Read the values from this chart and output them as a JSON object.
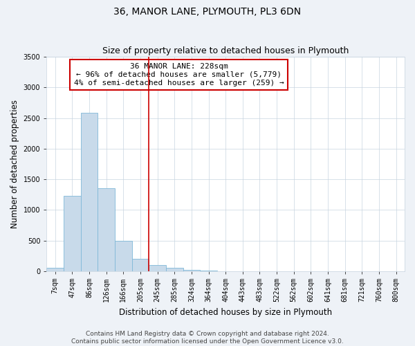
{
  "title": "36, MANOR LANE, PLYMOUTH, PL3 6DN",
  "subtitle": "Size of property relative to detached houses in Plymouth",
  "xlabel": "Distribution of detached houses by size in Plymouth",
  "ylabel": "Number of detached properties",
  "bar_labels": [
    "7sqm",
    "47sqm",
    "86sqm",
    "126sqm",
    "166sqm",
    "205sqm",
    "245sqm",
    "285sqm",
    "324sqm",
    "364sqm",
    "404sqm",
    "443sqm",
    "483sqm",
    "522sqm",
    "562sqm",
    "602sqm",
    "641sqm",
    "681sqm",
    "721sqm",
    "760sqm",
    "800sqm"
  ],
  "bar_values": [
    50,
    1230,
    2590,
    1350,
    500,
    200,
    100,
    55,
    20,
    5,
    2,
    0,
    0,
    0,
    0,
    0,
    0,
    0,
    0,
    0,
    0
  ],
  "bar_color": "#c8daea",
  "bar_edgecolor": "#7fb8d8",
  "ylim": [
    0,
    3500
  ],
  "yticks": [
    0,
    500,
    1000,
    1500,
    2000,
    2500,
    3000,
    3500
  ],
  "vline_x": 5.5,
  "vline_color": "#cc0000",
  "annotation_line1": "36 MANOR LANE: 228sqm",
  "annotation_line2": "← 96% of detached houses are smaller (5,779)",
  "annotation_line3": "4% of semi-detached houses are larger (259) →",
  "annotation_box_color": "#cc0000",
  "footnote1": "Contains HM Land Registry data © Crown copyright and database right 2024.",
  "footnote2": "Contains public sector information licensed under the Open Government Licence v3.0.",
  "bg_color": "#eef2f7",
  "plot_bg_color": "#ffffff",
  "grid_color": "#c8d4e0",
  "title_fontsize": 10,
  "subtitle_fontsize": 9,
  "axis_label_fontsize": 8.5,
  "tick_fontsize": 7,
  "annotation_fontsize": 8,
  "footnote_fontsize": 6.5
}
